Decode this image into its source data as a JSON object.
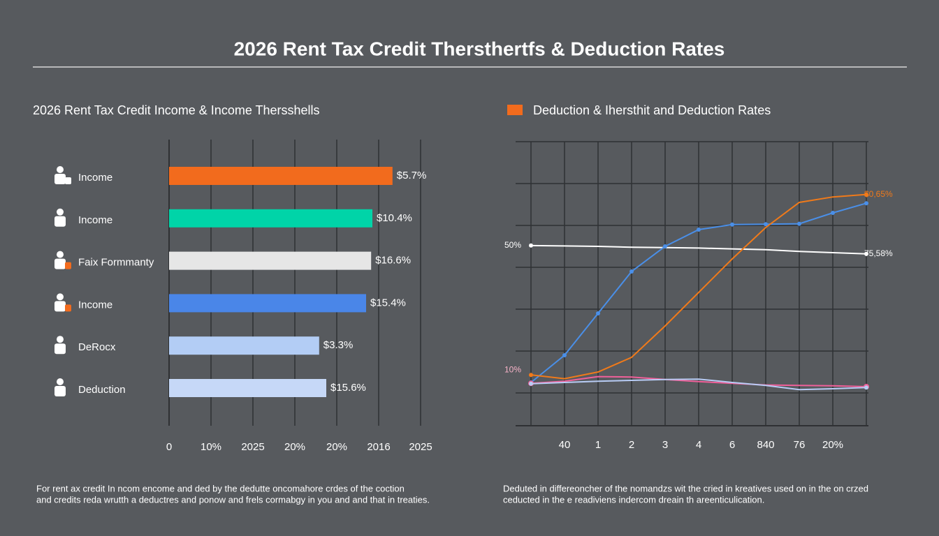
{
  "page": {
    "title": "2026 Rent Tax Credit Thersthertfs & Deduction Rates",
    "footnote_left": [
      "For rent ax credit In ncom encome and ded by the dedutte oncomahore crdes of the coction",
      "and credits reda wrutth a deductres and ponow and frels cormabgy in you and and that in treaties."
    ],
    "footnote_right": [
      "Deduted in differeoncher of the nomandzs wit the cried in kreatives used on in the on crzed",
      "ceducted in the e readiviens indercom dreain th areenticulication."
    ]
  },
  "chart_data": [
    {
      "type": "hbar",
      "title": "2026 Rent Tax Credit Income & Income Thersshells",
      "categories": [
        "Income",
        "Income",
        "Faix Formmanty",
        "Income",
        "DeRocx",
        "Deduction"
      ],
      "values": [
        5.33,
        4.85,
        4.82,
        4.7,
        3.58,
        3.75
      ],
      "annotations": [
        "$5.7%",
        "$10.4%",
        "$16.6%",
        "$15.4%",
        "$3.3%",
        "$15.6%"
      ],
      "colors": [
        "#f26b1d",
        "#00d4a8",
        "#e6e6e6",
        "#4a86e8",
        "#b3cdf5",
        "#c6d8f7"
      ],
      "xlim": [
        0,
        6
      ],
      "xticks": [
        0,
        {
          "value": 1,
          "label": "10%"
        },
        {
          "value": 2,
          "label": "2025"
        },
        {
          "value": 3,
          "label": "20%"
        },
        {
          "value": 4,
          "label": "20%"
        },
        {
          "value": 5,
          "label": "2016"
        },
        {
          "value": 6,
          "label": "2025"
        }
      ],
      "grid": true
    },
    {
      "type": "line",
      "title": "Deduction & Ihersthit and Deduction Rates",
      "legend_color": "#f26b1d",
      "categories": [
        null,
        "40",
        "1",
        "2",
        "3",
        "4",
        "6",
        "840",
        "76",
        "20%",
        null
      ],
      "ylim": [
        0,
        70
      ],
      "ygrid": [
        10,
        20,
        30,
        40,
        50,
        60,
        70
      ],
      "series": [
        {
          "color": "#ffffff",
          "values": [
            45.2,
            45.1,
            45,
            44.8,
            44.7,
            44.6,
            44.4,
            44.2,
            43.8,
            43.5,
            43.2
          ],
          "start_label": "50%",
          "end_label": "75,58%"
        },
        {
          "color": "#4a8fe8",
          "values": [
            12.5,
            19,
            29,
            39,
            45,
            49,
            50.2,
            50.3,
            50.4,
            53,
            55.3
          ]
        },
        {
          "color": "#f07a1a",
          "values": [
            14.3,
            13.4,
            15,
            18.5,
            26,
            34,
            42,
            49.5,
            55.5,
            56.8,
            57.4
          ],
          "end_label": "$0,65%"
        },
        {
          "color": "#f0609a",
          "values": [
            12.3,
            12.8,
            13.9,
            13.8,
            13.2,
            12.7,
            12.3,
            11.9,
            11.8,
            11.7,
            11.5
          ],
          "start_label": "10%"
        },
        {
          "color": "#b8ccf5",
          "values": [
            12.2,
            12.5,
            12.8,
            13,
            13.2,
            13.3,
            12.5,
            11.8,
            10.8,
            11,
            11.3
          ]
        }
      ]
    }
  ]
}
